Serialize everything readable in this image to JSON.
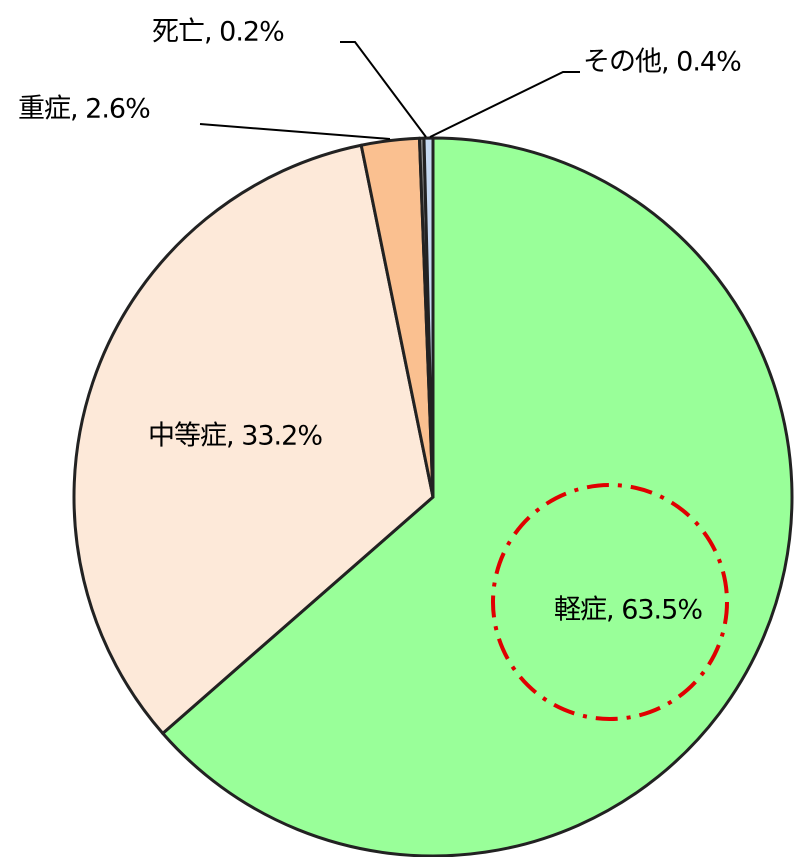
{
  "chart_data": {
    "type": "pie",
    "labels": [
      "軽症, 63.5%",
      "中等症, 33.2%",
      "重症, 2.6%",
      "死亡, 0.2%",
      "その他, 0.4%"
    ],
    "values": [
      63.5,
      33.2,
      2.6,
      0.2,
      0.4
    ],
    "colors": [
      "#99ff99",
      "#fde9d9",
      "#fac090",
      "#8c8c8c",
      "#c5d9f1"
    ]
  }
}
